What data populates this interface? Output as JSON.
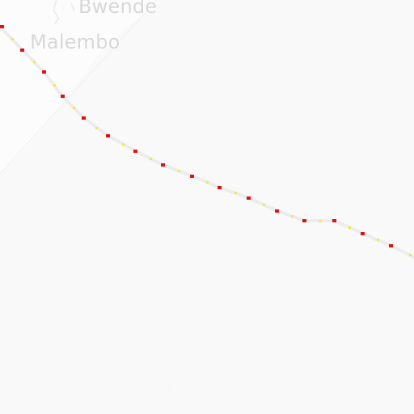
{
  "map": {
    "places": [
      {
        "name": "Bwende"
      },
      {
        "name": "Malembo"
      }
    ],
    "colors": {
      "background": "#f9f9f9",
      "terrain_light": "#fcfcfc",
      "road_casing": "#ececec",
      "route_marker": "#e01010",
      "route_marker_alt": "#f2e94e",
      "place_label": "#d7d7d7"
    }
  }
}
